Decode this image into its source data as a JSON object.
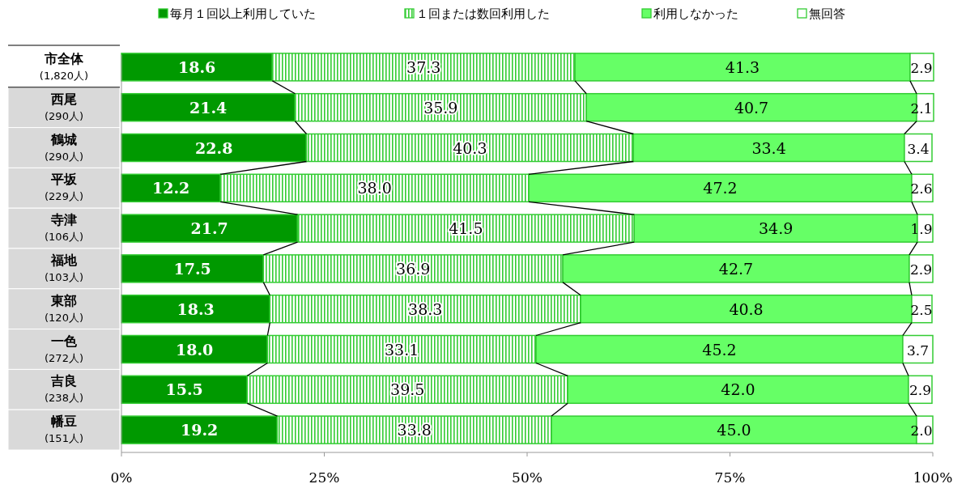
{
  "chart_data": {
    "type": "bar",
    "orientation": "horizontal",
    "stacked": true,
    "legend": "top",
    "xlim": [
      0,
      100
    ],
    "xticks": [
      {
        "value": 0,
        "label": "0%"
      },
      {
        "value": 25,
        "label": "25%"
      },
      {
        "value": 50,
        "label": "50%"
      },
      {
        "value": 75,
        "label": "75%"
      },
      {
        "value": 100,
        "label": "100%"
      }
    ],
    "categories": [
      "市全体\n(1,820人)",
      "西尾\n(290人)",
      "鶴城\n(290人)",
      "平坂\n(229人)",
      "寺津\n(106人)",
      "福地\n(103人)",
      "東部\n(120人)",
      "一色\n(272人)",
      "吉良\n(238人)",
      "幡豆\n(151人)"
    ],
    "series": [
      {
        "name": "毎月１回以上利用していた",
        "color": "#009900",
        "values": [
          18.6,
          21.4,
          22.8,
          12.2,
          21.7,
          17.5,
          18.3,
          18.0,
          15.5,
          19.2
        ],
        "value_labels": [
          "18.6",
          "21.4",
          "22.8",
          "12.2",
          "21.7",
          "17.5",
          "18.3",
          "18.0",
          "15.5",
          "19.2"
        ]
      },
      {
        "name": "１回または数回利用した",
        "color": "#33cc33",
        "values": [
          37.3,
          35.9,
          40.3,
          38.0,
          41.5,
          36.9,
          38.3,
          33.1,
          39.5,
          33.8
        ],
        "value_labels": [
          "37.3",
          "35.9",
          "40.3",
          "38.0",
          "41.5",
          "36.9",
          "38.3",
          "33.1",
          "39.5",
          "33.8"
        ]
      },
      {
        "name": "利用しなかった",
        "color": "#66ff66",
        "values": [
          41.3,
          40.7,
          33.4,
          47.2,
          34.9,
          42.7,
          40.8,
          45.2,
          42.0,
          45.0
        ],
        "value_labels": [
          "41.3",
          "40.7",
          "33.4",
          "47.2",
          "34.9",
          "42.7",
          "40.8",
          "45.2",
          "42.0",
          "45.0"
        ]
      },
      {
        "name": "無回答",
        "color": "#ffffff",
        "values": [
          2.9,
          2.1,
          3.4,
          2.6,
          1.9,
          2.9,
          2.5,
          3.7,
          2.9,
          2.0
        ],
        "value_labels": [
          "2.9",
          "2.1",
          "3.4",
          "2.6",
          "1.9",
          "2.9",
          "2.5",
          "3.7",
          "2.9",
          "2.0"
        ]
      }
    ]
  }
}
